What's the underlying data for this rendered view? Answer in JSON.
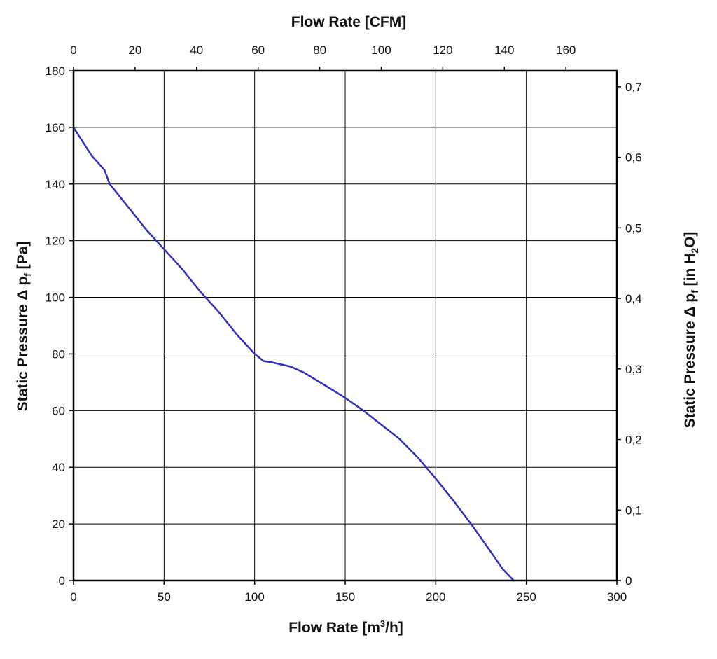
{
  "chart_data": {
    "type": "line",
    "title": "",
    "x_bottom": {
      "label": {
        "pre": "Flow Rate [m",
        "sup": "3",
        "post": "/h]"
      },
      "range": [
        0,
        300
      ],
      "ticks": [
        "0",
        "50",
        "100",
        "150",
        "200",
        "250",
        "300"
      ]
    },
    "x_top": {
      "label": "Flow Rate [CFM]",
      "range": [
        0,
        176.57
      ],
      "ticks": [
        "0",
        "20",
        "40",
        "60",
        "80",
        "100",
        "120",
        "140",
        "160"
      ]
    },
    "y_left": {
      "label": {
        "pre": "Static Pressure Δ p",
        "sub": "f",
        "post": " [Pa]"
      },
      "range": [
        0,
        180
      ],
      "ticks": [
        "0",
        "20",
        "40",
        "60",
        "80",
        "100",
        "120",
        "140",
        "160",
        "180"
      ]
    },
    "y_right": {
      "label": {
        "pre": "Static Pressure Δ p",
        "sub": "f",
        "mid": " [in H",
        "sub2": "2",
        "post": "O]"
      },
      "range": [
        0,
        0.7227
      ],
      "ticks": [
        "0",
        "0,1",
        "0,2",
        "0,3",
        "0,4",
        "0,5",
        "0,6",
        "0,7"
      ]
    },
    "grid": true,
    "series": [
      {
        "color": "#3030c0",
        "points": [
          [
            0,
            160
          ],
          [
            5,
            155
          ],
          [
            10,
            150
          ],
          [
            17,
            145
          ],
          [
            20,
            140
          ],
          [
            30,
            132
          ],
          [
            40,
            124
          ],
          [
            50,
            117
          ],
          [
            60,
            110
          ],
          [
            70,
            102
          ],
          [
            80,
            95
          ],
          [
            90,
            87
          ],
          [
            100,
            80
          ],
          [
            105,
            77.5
          ],
          [
            110,
            77
          ],
          [
            120,
            75.5
          ],
          [
            127,
            73.5
          ],
          [
            140,
            68.5
          ],
          [
            150,
            64.5
          ],
          [
            160,
            60
          ],
          [
            170,
            55
          ],
          [
            180,
            50
          ],
          [
            190,
            43.5
          ],
          [
            200,
            36
          ],
          [
            210,
            28
          ],
          [
            220,
            19.5
          ],
          [
            230,
            10.5
          ],
          [
            237,
            4
          ],
          [
            243,
            0
          ]
        ]
      }
    ]
  }
}
